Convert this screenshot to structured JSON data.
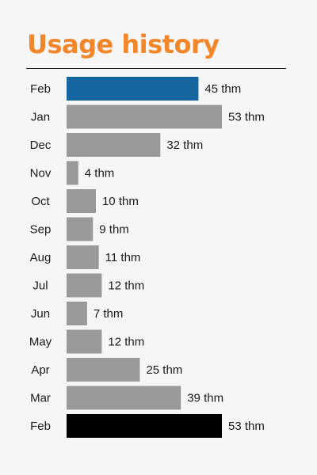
{
  "colors": {
    "title": "#f2862b",
    "current": "#1565a0",
    "default": "#999999",
    "year_ago": "#000000"
  },
  "chart_data": {
    "type": "bar",
    "orientation": "horizontal",
    "title": "Usage history",
    "unit": "thm",
    "categories": [
      "Feb",
      "Jan",
      "Dec",
      "Nov",
      "Oct",
      "Sep",
      "Aug",
      "Jul",
      "Jun",
      "May",
      "Apr",
      "Mar",
      "Feb"
    ],
    "values": [
      45,
      53,
      32,
      4,
      10,
      9,
      11,
      12,
      7,
      12,
      25,
      39,
      53
    ],
    "value_labels": [
      "45 thm",
      "53 thm",
      "32 thm",
      "4 thm",
      "10 thm",
      "9 thm",
      "11 thm",
      "12 thm",
      "7 thm",
      "12 thm",
      "25 thm",
      "39 thm",
      "53 thm"
    ],
    "bar_colors": [
      "#1565a0",
      "#999999",
      "#999999",
      "#999999",
      "#999999",
      "#999999",
      "#999999",
      "#999999",
      "#999999",
      "#999999",
      "#999999",
      "#999999",
      "#000000"
    ],
    "xlim": [
      0,
      53
    ],
    "grid": false,
    "legend": "none"
  }
}
